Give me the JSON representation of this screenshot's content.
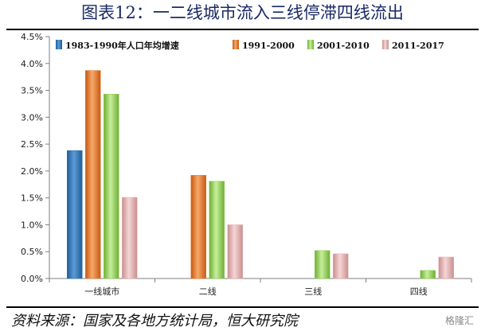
{
  "header": {
    "title": "图表12：一二线城市流入三线停滞四线流出"
  },
  "footer": {
    "source": "资料来源：国家及各地方统计局，恒大研究院",
    "watermark": "格隆汇"
  },
  "chart_data": {
    "type": "bar",
    "title": "",
    "xlabel": "",
    "ylabel": "",
    "categories": [
      "一线城市",
      "二线",
      "三线",
      "四线"
    ],
    "series": [
      {
        "name": "1983-1990年人口年均增速",
        "color": "#2e75b6",
        "values": [
          0.0238,
          null,
          null,
          null
        ]
      },
      {
        "name": "1991-2000",
        "color": "#ed7d31",
        "values": [
          0.0387,
          0.0192,
          null,
          null
        ]
      },
      {
        "name": "2001-2010",
        "color": "#92d050",
        "values": [
          0.0343,
          0.0181,
          0.0052,
          0.0015
        ]
      },
      {
        "name": "2011-2017",
        "color": "#e6b3b3",
        "values": [
          0.0151,
          0.01,
          0.0046,
          0.004
        ]
      }
    ],
    "ylim": [
      0,
      0.045
    ],
    "yticks": [
      "0.0%",
      "0.5%",
      "1.0%",
      "1.5%",
      "2.0%",
      "2.5%",
      "3.0%",
      "3.5%",
      "4.0%",
      "4.5%"
    ],
    "ytick_values": [
      0,
      0.005,
      0.01,
      0.015,
      0.02,
      0.025,
      0.03,
      0.035,
      0.04,
      0.045
    ],
    "grid": false,
    "legend_position": "top"
  }
}
